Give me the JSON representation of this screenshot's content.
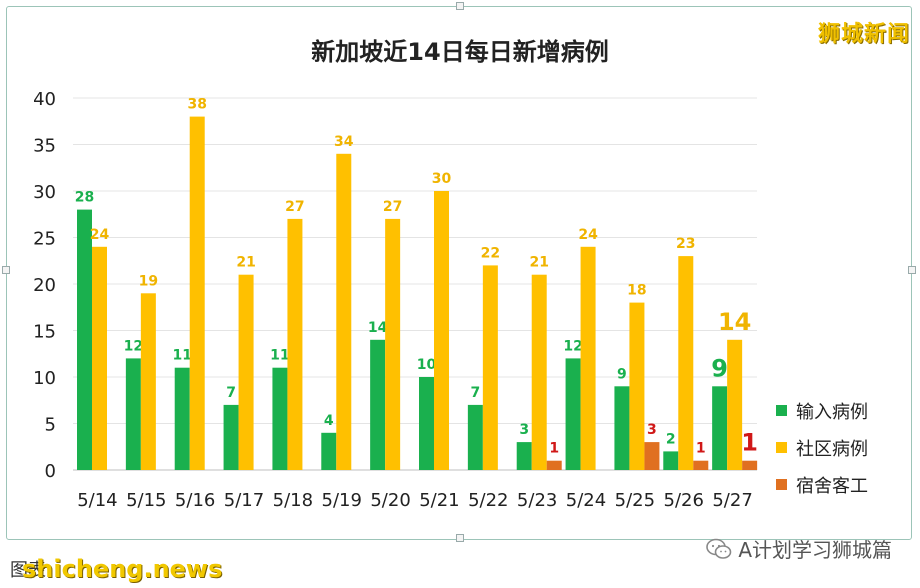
{
  "branding": {
    "corner_label": "狮城新闻",
    "watermark_site": "shicheng.news",
    "footer_left_text": "图表",
    "footer_right_text": "A计划学习狮城篇"
  },
  "chart_data": {
    "type": "bar",
    "title": "新加坡近14日每日新增病例",
    "categories": [
      "5/14",
      "5/15",
      "5/16",
      "5/17",
      "5/18",
      "5/19",
      "5/20",
      "5/21",
      "5/22",
      "5/23",
      "5/24",
      "5/25",
      "5/26",
      "5/27"
    ],
    "series": [
      {
        "name": "输入病例",
        "color": "#1ab04e",
        "label_color": "#1ab04e",
        "values": [
          28,
          12,
          11,
          7,
          11,
          4,
          14,
          10,
          7,
          3,
          12,
          9,
          2,
          9
        ]
      },
      {
        "name": "社区病例",
        "color": "#ffc000",
        "label_color": "#f0b400",
        "values": [
          24,
          19,
          38,
          21,
          27,
          34,
          27,
          30,
          22,
          21,
          24,
          18,
          23,
          14
        ]
      },
      {
        "name": "宿舍客工",
        "color": "#e07020",
        "label_color": "#d01818",
        "values": [
          0,
          0,
          0,
          0,
          0,
          0,
          0,
          0,
          0,
          1,
          0,
          3,
          1,
          1
        ]
      }
    ],
    "ylim": [
      0,
      40
    ],
    "yticks": [
      0,
      5,
      10,
      15,
      20,
      25,
      30,
      35,
      40
    ],
    "xlabel": "",
    "ylabel": "",
    "grid": true,
    "legend_position": "right",
    "emphasized_category": "5/27"
  }
}
